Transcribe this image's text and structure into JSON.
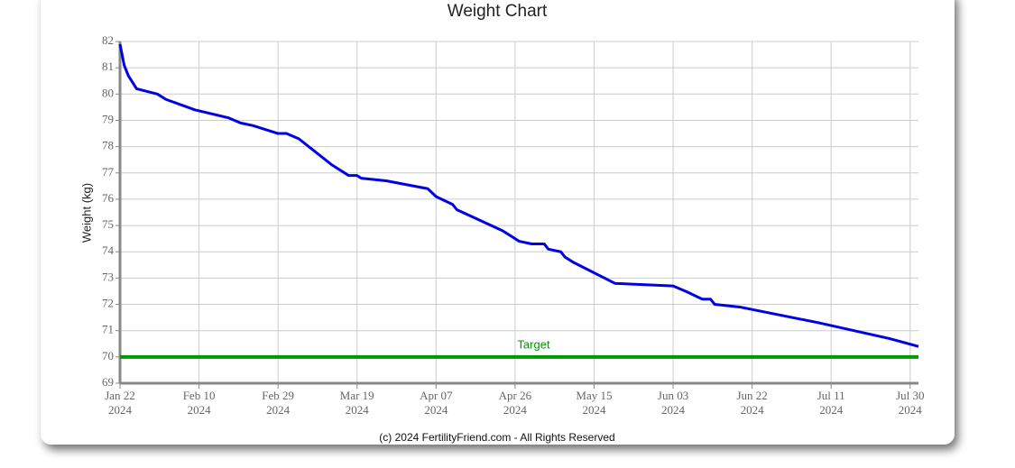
{
  "chart_data": {
    "type": "line",
    "title": "Weight Chart",
    "y_label": "Weight (kg)",
    "footer": "(c) 2024 FertilityFriend.com - All Rights Reserved",
    "xlim": [
      "2024-01-22",
      "2024-08-01"
    ],
    "xticks": [
      {
        "value": "2024-01-22",
        "label": [
          "Jan 22",
          "2024"
        ]
      },
      {
        "value": "2024-02-10",
        "label": [
          "Feb 10",
          "2024"
        ]
      },
      {
        "value": "2024-02-29",
        "label": [
          "Feb 29",
          "2024"
        ]
      },
      {
        "value": "2024-03-19",
        "label": [
          "Mar 19",
          "2024"
        ]
      },
      {
        "value": "2024-04-07",
        "label": [
          "Apr 07",
          "2024"
        ]
      },
      {
        "value": "2024-04-26",
        "label": [
          "Apr 26",
          "2024"
        ]
      },
      {
        "value": "2024-05-15",
        "label": [
          "May 15",
          "2024"
        ]
      },
      {
        "value": "2024-06-03",
        "label": [
          "Jun 03",
          "2024"
        ]
      },
      {
        "value": "2024-06-22",
        "label": [
          "Jun 22",
          "2024"
        ]
      },
      {
        "value": "2024-07-11",
        "label": [
          "Jul 11",
          "2024"
        ]
      },
      {
        "value": "2024-07-30",
        "label": [
          "Jul 30",
          "2024"
        ]
      }
    ],
    "ylim": [
      69,
      82
    ],
    "yticks": [
      69,
      70,
      71,
      72,
      73,
      74,
      75,
      76,
      77,
      78,
      79,
      80,
      81,
      82
    ],
    "grid": true,
    "x": [
      "2024-01-22",
      "2024-01-23",
      "2024-01-24",
      "2024-01-26",
      "2024-01-31",
      "2024-02-02",
      "2024-02-09",
      "2024-02-17",
      "2024-02-20",
      "2024-02-23",
      "2024-02-29",
      "2024-03-02",
      "2024-03-05",
      "2024-03-13",
      "2024-03-17",
      "2024-03-19",
      "2024-03-20",
      "2024-03-26",
      "2024-04-05",
      "2024-04-07",
      "2024-04-11",
      "2024-04-12",
      "2024-04-23",
      "2024-04-27",
      "2024-04-30",
      "2024-05-03",
      "2024-05-04",
      "2024-05-07",
      "2024-05-08",
      "2024-05-10",
      "2024-05-20",
      "2024-06-03",
      "2024-06-06",
      "2024-06-10",
      "2024-06-12",
      "2024-06-13",
      "2024-06-19",
      "2024-07-08",
      "2024-07-25",
      "2024-08-01"
    ],
    "series": [
      {
        "name": "Weight",
        "color": "#0000e6",
        "values": [
          81.9,
          81.1,
          80.7,
          80.2,
          80.0,
          79.8,
          79.4,
          79.1,
          78.9,
          78.8,
          78.5,
          78.5,
          78.3,
          77.3,
          76.9,
          76.9,
          76.8,
          76.7,
          76.4,
          76.1,
          75.8,
          75.6,
          74.8,
          74.4,
          74.3,
          74.3,
          74.1,
          74.0,
          73.8,
          73.6,
          72.8,
          72.7,
          72.5,
          72.2,
          72.2,
          72.0,
          71.9,
          71.3,
          70.7,
          70.4
        ]
      }
    ],
    "target": {
      "value": 70,
      "label": "Target",
      "color": "#009900"
    }
  }
}
